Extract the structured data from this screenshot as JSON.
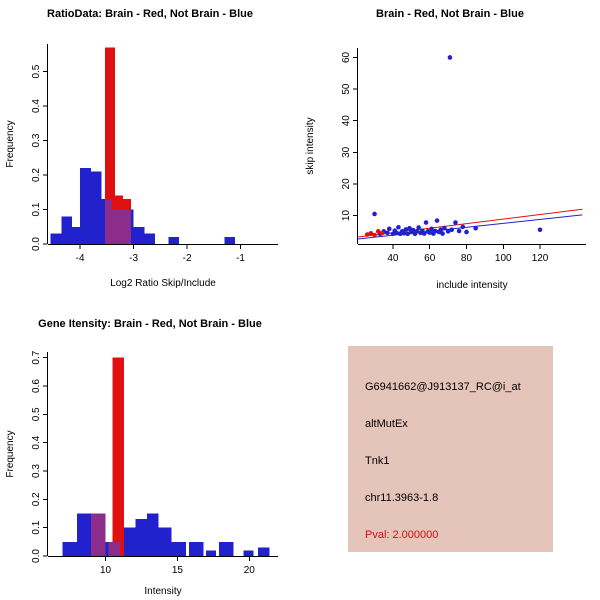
{
  "window": {
    "background": "#ffffff"
  },
  "chart_data": [
    {
      "id": "ratio-histogram",
      "type": "bar",
      "title": "RatioData: Brain - Red, Not Brain - Blue",
      "xlabel": "Log2 Ratio Skip/Include",
      "ylabel": "Frequency",
      "xlim": [
        -4.6,
        -0.3
      ],
      "ylim": [
        0,
        0.58
      ],
      "xticks": [
        -4,
        -3,
        -2,
        -1
      ],
      "xtick_labels": [
        "-4",
        "-3",
        "-2",
        "-1"
      ],
      "yticks": [
        0,
        0.1,
        0.2,
        0.3,
        0.4,
        0.5
      ],
      "ytick_labels": [
        "0.0",
        "0.1",
        "0.2",
        "0.3",
        "0.4",
        "0.5"
      ],
      "grid": false,
      "legend_note": "Brain - Red, Not Brain - Blue",
      "overlap_color": "#8c2d8c",
      "series": [
        {
          "name": "Not Brain",
          "color": "#2121cd",
          "bars": [
            {
              "x": -4.55,
              "w": 0.2,
              "h": 0.03
            },
            {
              "x": -4.35,
              "w": 0.2,
              "h": 0.08
            },
            {
              "x": -4.15,
              "w": 0.15,
              "h": 0.05
            },
            {
              "x": -4.0,
              "w": 0.2,
              "h": 0.22
            },
            {
              "x": -3.8,
              "w": 0.2,
              "h": 0.21
            },
            {
              "x": -3.6,
              "w": 0.2,
              "h": 0.13
            },
            {
              "x": -3.4,
              "w": 0.2,
              "h": 0.1
            },
            {
              "x": -3.2,
              "w": 0.2,
              "h": 0.1
            },
            {
              "x": -3.0,
              "w": 0.2,
              "h": 0.05
            },
            {
              "x": -2.8,
              "w": 0.2,
              "h": 0.03
            },
            {
              "x": -2.35,
              "w": 0.2,
              "h": 0.02
            },
            {
              "x": -1.3,
              "w": 0.2,
              "h": 0.02
            }
          ]
        },
        {
          "name": "Brain",
          "color": "#e01010",
          "bars": [
            {
              "x": -3.53,
              "w": 0.18,
              "h": 0.57
            },
            {
              "x": -3.35,
              "w": 0.15,
              "h": 0.14
            },
            {
              "x": -3.2,
              "w": 0.15,
              "h": 0.13
            }
          ]
        }
      ]
    },
    {
      "id": "intensity-scatter",
      "type": "scatter",
      "title": "Brain - Red, Not Brain - Blue",
      "xlabel": "include intensity",
      "ylabel": "skip intensity",
      "xlim": [
        21,
        145
      ],
      "ylim": [
        1,
        63
      ],
      "xticks": [
        40,
        60,
        80,
        100,
        120
      ],
      "xtick_labels": [
        "40",
        "60",
        "80",
        "100",
        "120"
      ],
      "yticks": [
        10,
        20,
        30,
        40,
        50,
        60
      ],
      "ytick_labels": [
        "10",
        "20",
        "30",
        "40",
        "50",
        "60"
      ],
      "grid": false,
      "series": [
        {
          "name": "Not Brain",
          "color": "#2121cd",
          "points": [
            [
              30,
              10.5
            ],
            [
              33,
              4.2
            ],
            [
              35,
              5
            ],
            [
              37,
              4.5
            ],
            [
              38,
              5.8
            ],
            [
              40,
              4.2
            ],
            [
              41,
              5.2
            ],
            [
              42,
              4.5
            ],
            [
              43,
              6.3
            ],
            [
              44,
              4.2
            ],
            [
              45,
              5
            ],
            [
              46,
              4.4
            ],
            [
              47,
              5.6
            ],
            [
              48,
              4.2
            ],
            [
              49,
              6
            ],
            [
              50,
              4.8
            ],
            [
              51,
              5.4
            ],
            [
              52,
              4.2
            ],
            [
              53,
              5
            ],
            [
              54,
              6.2
            ],
            [
              55,
              4.5
            ],
            [
              56,
              5.2
            ],
            [
              57,
              4.3
            ],
            [
              58,
              7.8
            ],
            [
              59,
              5
            ],
            [
              60,
              4.6
            ],
            [
              61,
              5.8
            ],
            [
              62,
              4.3
            ],
            [
              63,
              5.1
            ],
            [
              64,
              8.4
            ],
            [
              65,
              4.8
            ],
            [
              66,
              5.5
            ],
            [
              67,
              4.3
            ],
            [
              68,
              6
            ],
            [
              70,
              5
            ],
            [
              71,
              60
            ],
            [
              72,
              5.5
            ],
            [
              74,
              7.8
            ],
            [
              76,
              5.1
            ],
            [
              78,
              6.4
            ],
            [
              80,
              4.8
            ],
            [
              85,
              6
            ],
            [
              120,
              5.5
            ]
          ]
        },
        {
          "name": "Brain",
          "color": "#e01010",
          "points": [
            [
              26,
              4
            ],
            [
              28,
              4.4
            ],
            [
              30,
              3.8
            ],
            [
              32,
              5
            ],
            [
              34,
              4.4
            ]
          ]
        }
      ],
      "fit_lines": [
        {
          "color": "#e01010",
          "x1": 21,
          "y1": 3.2,
          "x2": 143,
          "y2": 12.0
        },
        {
          "color": "#2121cd",
          "x1": 21,
          "y1": 2.6,
          "x2": 143,
          "y2": 10.2
        }
      ]
    },
    {
      "id": "gene-intensity-histogram",
      "type": "bar",
      "title": "Gene Itensity: Brain - Red, Not Brain - Blue",
      "xlabel": "Intensity",
      "ylabel": "Frequency",
      "xlim": [
        6,
        22
      ],
      "ylim": [
        0,
        0.72
      ],
      "xticks": [
        10,
        15,
        20
      ],
      "xtick_labels": [
        "10",
        "15",
        "20"
      ],
      "yticks": [
        0,
        0.1,
        0.2,
        0.3,
        0.4,
        0.5,
        0.6,
        0.7
      ],
      "ytick_labels": [
        "0.0",
        "0.1",
        "0.2",
        "0.3",
        "0.4",
        "0.5",
        "0.6",
        "0.7"
      ],
      "grid": false,
      "overlap_color": "#8c2d8c",
      "series": [
        {
          "name": "Not Brain",
          "color": "#2121cd",
          "bars": [
            {
              "x": 7,
              "w": 1,
              "h": 0.05
            },
            {
              "x": 8,
              "w": 1,
              "h": 0.15
            },
            {
              "x": 9,
              "w": 1,
              "h": 0.15
            },
            {
              "x": 10,
              "w": 1,
              "h": 0.05
            },
            {
              "x": 11.3,
              "w": 0.8,
              "h": 0.1
            },
            {
              "x": 12.1,
              "w": 0.8,
              "h": 0.13
            },
            {
              "x": 12.9,
              "w": 0.8,
              "h": 0.15
            },
            {
              "x": 13.7,
              "w": 0.9,
              "h": 0.1
            },
            {
              "x": 14.6,
              "w": 1,
              "h": 0.05
            },
            {
              "x": 15.8,
              "w": 1,
              "h": 0.05
            },
            {
              "x": 17,
              "w": 0.7,
              "h": 0.02
            },
            {
              "x": 17.9,
              "w": 1,
              "h": 0.05
            },
            {
              "x": 19.6,
              "w": 0.7,
              "h": 0.02
            },
            {
              "x": 20.6,
              "w": 0.8,
              "h": 0.03
            }
          ]
        },
        {
          "name": "Brain",
          "color": "#e01010",
          "bars": [
            {
              "x": 9,
              "w": 1,
              "h": 0.15
            },
            {
              "x": 10.2,
              "w": 0.4,
              "h": 0.05
            },
            {
              "x": 10.5,
              "w": 0.8,
              "h": 0.7
            }
          ]
        }
      ]
    }
  ],
  "info_panel": {
    "bg_color": "#e5c4ba",
    "lines": [
      {
        "text": "G6941662@J913137_RC@i_at",
        "color": "#000000"
      },
      {
        "text": "altMutEx",
        "color": "#000000"
      },
      {
        "text": "Tnk1",
        "color": "#000000"
      },
      {
        "text": "chr11.3963-1.8",
        "color": "#000000"
      },
      {
        "text": "Pval: 2.000000",
        "color": "#cc1111"
      }
    ]
  }
}
